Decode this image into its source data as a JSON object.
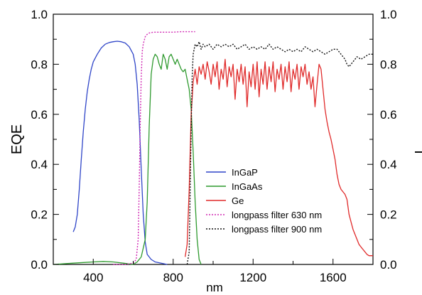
{
  "chart_data": {
    "type": "line",
    "title": "",
    "xlabel": "nm",
    "ylabel": "EQE",
    "y2label": "T",
    "xlim": [
      200,
      1800
    ],
    "ylim": [
      0,
      1.0
    ],
    "y2lim": [
      0,
      1.0
    ],
    "xticks": [
      400,
      800,
      1200,
      1600
    ],
    "yticks": [
      "0.0",
      "0.2",
      "0.4",
      "0.6",
      "0.8",
      "1.0"
    ],
    "y2ticks": [
      "0.0",
      "0.2",
      "0.4",
      "0.6",
      "0.8",
      "1.0"
    ],
    "grid": false,
    "legend_position": "lower-center",
    "series": [
      {
        "name": "InGaP",
        "color": "#2f45c8",
        "dash": "solid",
        "axis": "left",
        "points": [
          [
            300,
            0.13
          ],
          [
            310,
            0.15
          ],
          [
            320,
            0.2
          ],
          [
            330,
            0.3
          ],
          [
            340,
            0.42
          ],
          [
            350,
            0.53
          ],
          [
            360,
            0.62
          ],
          [
            370,
            0.69
          ],
          [
            380,
            0.74
          ],
          [
            390,
            0.78
          ],
          [
            400,
            0.81
          ],
          [
            420,
            0.84
          ],
          [
            440,
            0.865
          ],
          [
            460,
            0.88
          ],
          [
            480,
            0.887
          ],
          [
            500,
            0.89
          ],
          [
            520,
            0.892
          ],
          [
            540,
            0.89
          ],
          [
            560,
            0.885
          ],
          [
            580,
            0.87
          ],
          [
            600,
            0.84
          ],
          [
            610,
            0.8
          ],
          [
            620,
            0.72
          ],
          [
            630,
            0.58
          ],
          [
            640,
            0.38
          ],
          [
            650,
            0.2
          ],
          [
            660,
            0.09
          ],
          [
            670,
            0.04
          ],
          [
            690,
            0.02
          ],
          [
            710,
            0.01
          ],
          [
            740,
            0.005
          ],
          [
            770,
            0.0
          ]
        ]
      },
      {
        "name": "InGaAs",
        "color": "#2f9a2f",
        "dash": "solid",
        "axis": "left",
        "points": [
          [
            200,
            0.0
          ],
          [
            300,
            0.005
          ],
          [
            400,
            0.01
          ],
          [
            450,
            0.012
          ],
          [
            500,
            0.01
          ],
          [
            550,
            0.005
          ],
          [
            600,
            0.0
          ],
          [
            620,
            0.01
          ],
          [
            640,
            0.03
          ],
          [
            660,
            0.1
          ],
          [
            670,
            0.25
          ],
          [
            680,
            0.55
          ],
          [
            690,
            0.76
          ],
          [
            700,
            0.82
          ],
          [
            710,
            0.84
          ],
          [
            720,
            0.83
          ],
          [
            730,
            0.8
          ],
          [
            740,
            0.78
          ],
          [
            750,
            0.84
          ],
          [
            760,
            0.82
          ],
          [
            770,
            0.78
          ],
          [
            780,
            0.83
          ],
          [
            790,
            0.84
          ],
          [
            800,
            0.82
          ],
          [
            810,
            0.8
          ],
          [
            820,
            0.82
          ],
          [
            830,
            0.8
          ],
          [
            840,
            0.78
          ],
          [
            850,
            0.77
          ],
          [
            860,
            0.78
          ],
          [
            870,
            0.74
          ],
          [
            880,
            0.7
          ],
          [
            890,
            0.62
          ],
          [
            900,
            0.45
          ],
          [
            910,
            0.25
          ],
          [
            920,
            0.1
          ],
          [
            930,
            0.02
          ],
          [
            940,
            0.0
          ]
        ]
      },
      {
        "name": "Ge",
        "color": "#e02a2a",
        "dash": "solid",
        "axis": "left",
        "points": [
          [
            860,
            0.03
          ],
          [
            870,
            0.08
          ],
          [
            880,
            0.3
          ],
          [
            890,
            0.6
          ],
          [
            900,
            0.73
          ],
          [
            910,
            0.78
          ],
          [
            920,
            0.72
          ],
          [
            930,
            0.79
          ],
          [
            940,
            0.76
          ],
          [
            950,
            0.8
          ],
          [
            960,
            0.74
          ],
          [
            970,
            0.81
          ],
          [
            980,
            0.77
          ],
          [
            990,
            0.72
          ],
          [
            1000,
            0.8
          ],
          [
            1010,
            0.75
          ],
          [
            1020,
            0.81
          ],
          [
            1030,
            0.7
          ],
          [
            1040,
            0.78
          ],
          [
            1050,
            0.74
          ],
          [
            1060,
            0.82
          ],
          [
            1070,
            0.71
          ],
          [
            1080,
            0.79
          ],
          [
            1090,
            0.75
          ],
          [
            1100,
            0.8
          ],
          [
            1110,
            0.66
          ],
          [
            1120,
            0.78
          ],
          [
            1130,
            0.73
          ],
          [
            1140,
            0.8
          ],
          [
            1150,
            0.72
          ],
          [
            1160,
            0.79
          ],
          [
            1170,
            0.63
          ],
          [
            1180,
            0.77
          ],
          [
            1190,
            0.71
          ],
          [
            1200,
            0.8
          ],
          [
            1210,
            0.7
          ],
          [
            1220,
            0.81
          ],
          [
            1230,
            0.67
          ],
          [
            1240,
            0.78
          ],
          [
            1250,
            0.72
          ],
          [
            1260,
            0.81
          ],
          [
            1270,
            0.7
          ],
          [
            1280,
            0.79
          ],
          [
            1290,
            0.73
          ],
          [
            1300,
            0.81
          ],
          [
            1310,
            0.69
          ],
          [
            1320,
            0.78
          ],
          [
            1330,
            0.74
          ],
          [
            1340,
            0.8
          ],
          [
            1350,
            0.7
          ],
          [
            1360,
            0.79
          ],
          [
            1370,
            0.73
          ],
          [
            1380,
            0.81
          ],
          [
            1390,
            0.69
          ],
          [
            1400,
            0.78
          ],
          [
            1410,
            0.74
          ],
          [
            1420,
            0.8
          ],
          [
            1430,
            0.7
          ],
          [
            1440,
            0.79
          ],
          [
            1450,
            0.75
          ],
          [
            1460,
            0.8
          ],
          [
            1470,
            0.72
          ],
          [
            1480,
            0.77
          ],
          [
            1490,
            0.7
          ],
          [
            1500,
            0.75
          ],
          [
            1510,
            0.63
          ],
          [
            1520,
            0.72
          ],
          [
            1530,
            0.8
          ],
          [
            1540,
            0.78
          ],
          [
            1550,
            0.7
          ],
          [
            1560,
            0.62
          ],
          [
            1570,
            0.57
          ],
          [
            1580,
            0.53
          ],
          [
            1590,
            0.5
          ],
          [
            1600,
            0.46
          ],
          [
            1610,
            0.42
          ],
          [
            1620,
            0.36
          ],
          [
            1630,
            0.32
          ],
          [
            1640,
            0.3
          ],
          [
            1650,
            0.29
          ],
          [
            1660,
            0.28
          ],
          [
            1670,
            0.26
          ],
          [
            1680,
            0.2
          ],
          [
            1690,
            0.17
          ],
          [
            1700,
            0.14
          ],
          [
            1710,
            0.12
          ],
          [
            1720,
            0.1
          ],
          [
            1730,
            0.08
          ],
          [
            1740,
            0.07
          ],
          [
            1750,
            0.06
          ],
          [
            1760,
            0.05
          ],
          [
            1770,
            0.04
          ],
          [
            1780,
            0.035
          ],
          [
            1790,
            0.035
          ],
          [
            1800,
            0.035
          ]
        ]
      },
      {
        "name": "longpass filter 630 nm",
        "color": "#d12bb4",
        "dash": "dotted",
        "axis": "right",
        "points": [
          [
            500,
            0.0
          ],
          [
            560,
            0.0
          ],
          [
            600,
            0.005
          ],
          [
            615,
            0.02
          ],
          [
            625,
            0.1
          ],
          [
            630,
            0.3
          ],
          [
            635,
            0.55
          ],
          [
            640,
            0.75
          ],
          [
            645,
            0.85
          ],
          [
            650,
            0.88
          ],
          [
            660,
            0.91
          ],
          [
            670,
            0.92
          ],
          [
            680,
            0.925
          ],
          [
            700,
            0.928
          ],
          [
            720,
            0.928
          ],
          [
            760,
            0.928
          ],
          [
            800,
            0.928
          ],
          [
            840,
            0.93
          ],
          [
            880,
            0.93
          ],
          [
            910,
            0.93
          ]
        ]
      },
      {
        "name": "longpass filter 900 nm",
        "color": "#111111",
        "dash": "dotted",
        "axis": "right",
        "points": [
          [
            870,
            0.0
          ],
          [
            880,
            0.05
          ],
          [
            885,
            0.3
          ],
          [
            890,
            0.55
          ],
          [
            895,
            0.75
          ],
          [
            900,
            0.84
          ],
          [
            910,
            0.88
          ],
          [
            920,
            0.87
          ],
          [
            930,
            0.89
          ],
          [
            940,
            0.86
          ],
          [
            950,
            0.88
          ],
          [
            960,
            0.87
          ],
          [
            980,
            0.88
          ],
          [
            1000,
            0.86
          ],
          [
            1020,
            0.88
          ],
          [
            1040,
            0.87
          ],
          [
            1060,
            0.88
          ],
          [
            1080,
            0.87
          ],
          [
            1100,
            0.88
          ],
          [
            1120,
            0.86
          ],
          [
            1140,
            0.87
          ],
          [
            1160,
            0.88
          ],
          [
            1180,
            0.86
          ],
          [
            1200,
            0.87
          ],
          [
            1220,
            0.86
          ],
          [
            1240,
            0.87
          ],
          [
            1260,
            0.86
          ],
          [
            1280,
            0.88
          ],
          [
            1300,
            0.86
          ],
          [
            1320,
            0.87
          ],
          [
            1340,
            0.86
          ],
          [
            1360,
            0.85
          ],
          [
            1380,
            0.86
          ],
          [
            1400,
            0.85
          ],
          [
            1420,
            0.86
          ],
          [
            1440,
            0.85
          ],
          [
            1460,
            0.87
          ],
          [
            1480,
            0.86
          ],
          [
            1500,
            0.85
          ],
          [
            1520,
            0.86
          ],
          [
            1540,
            0.85
          ],
          [
            1560,
            0.84
          ],
          [
            1580,
            0.85
          ],
          [
            1600,
            0.86
          ],
          [
            1620,
            0.86
          ],
          [
            1640,
            0.84
          ],
          [
            1660,
            0.82
          ],
          [
            1670,
            0.8
          ],
          [
            1680,
            0.79
          ],
          [
            1690,
            0.8
          ],
          [
            1700,
            0.81
          ],
          [
            1720,
            0.83
          ],
          [
            1740,
            0.82
          ],
          [
            1760,
            0.83
          ],
          [
            1780,
            0.84
          ],
          [
            1800,
            0.84
          ]
        ]
      }
    ]
  }
}
